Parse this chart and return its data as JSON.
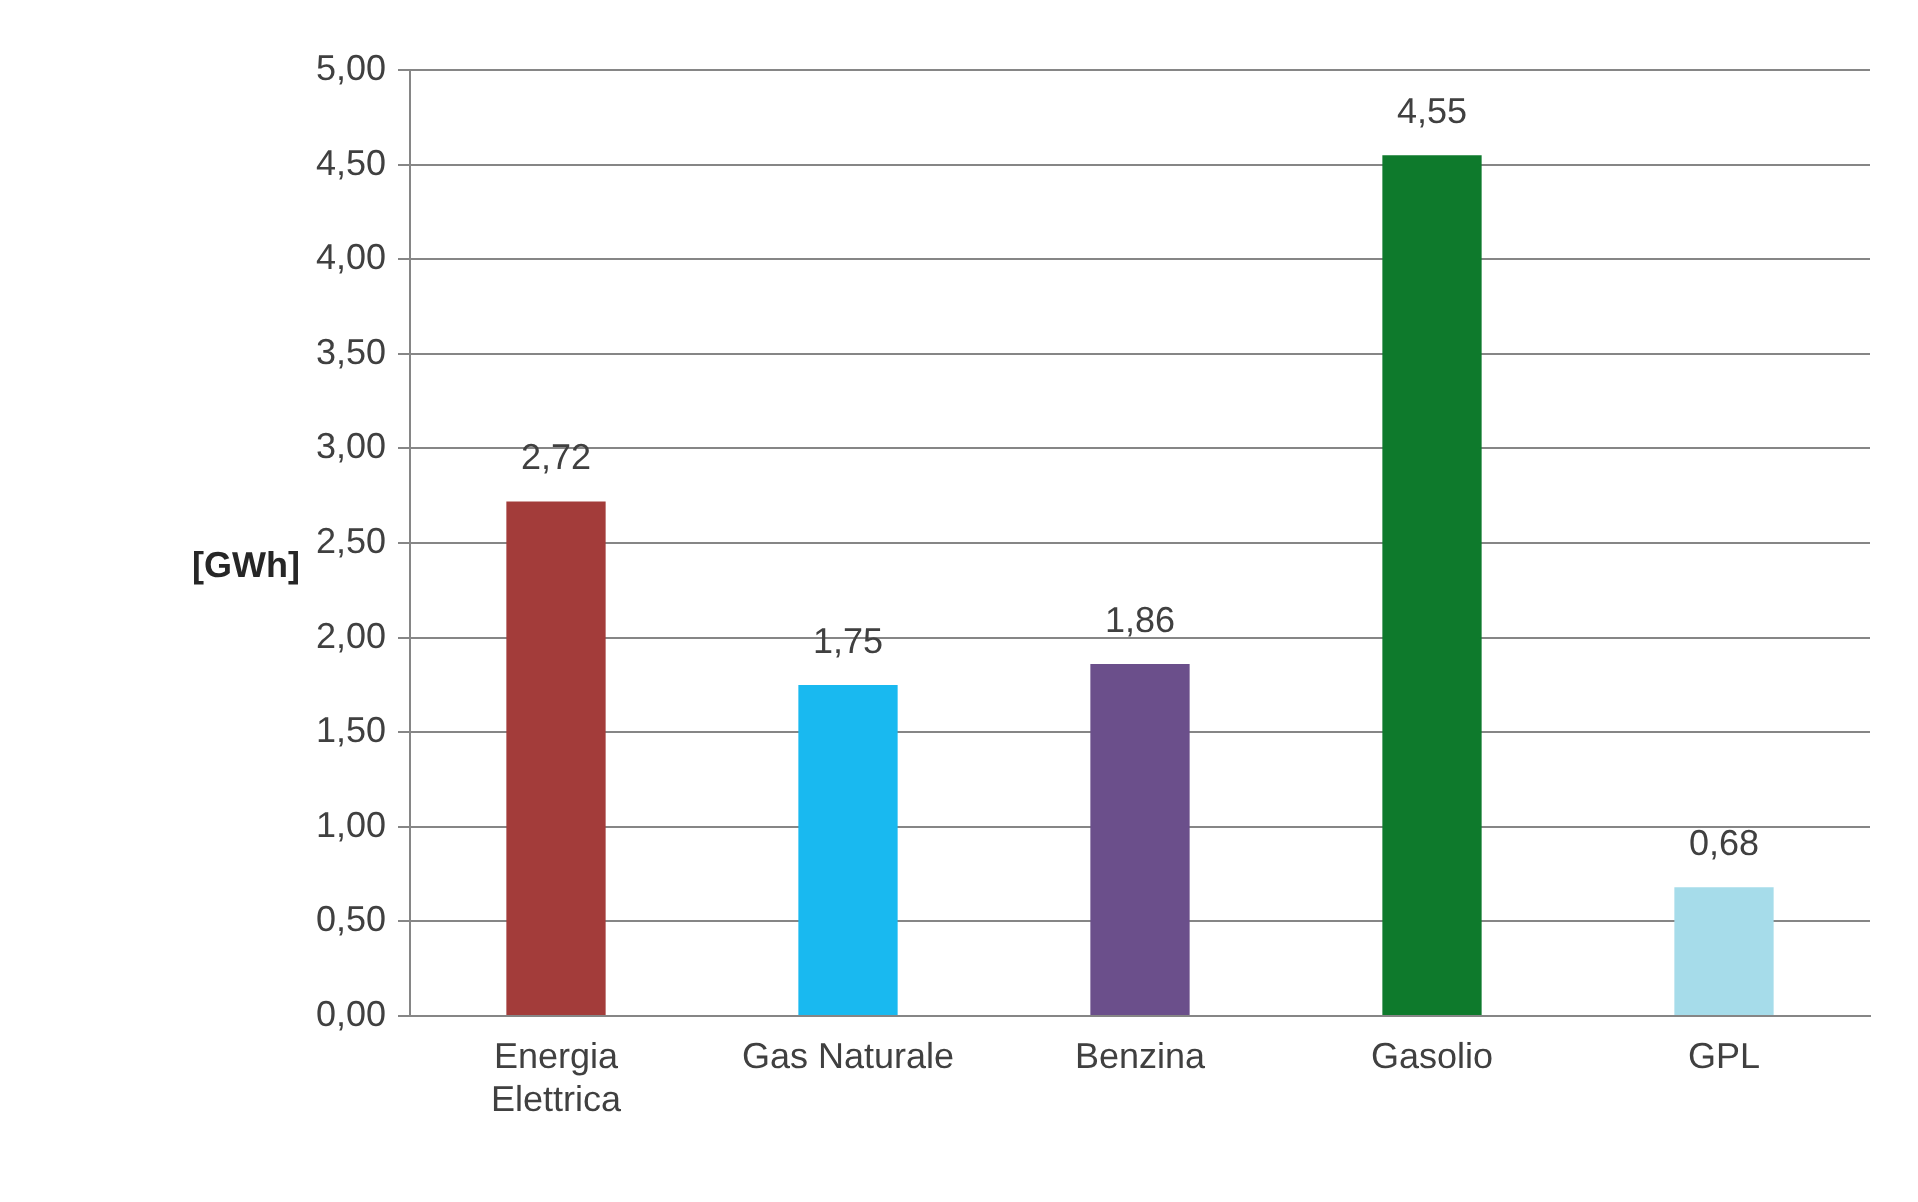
{
  "chart_data": {
    "type": "bar",
    "ylabel": "[GWh]",
    "categories": [
      "Energia Elettrica",
      "Gas Naturale",
      "Benzina",
      "Gasolio",
      "GPL"
    ],
    "values": [
      2.72,
      1.75,
      1.86,
      4.55,
      0.68
    ],
    "colors": [
      "#a33c3a",
      "#19b9f0",
      "#6b4f8b",
      "#0e7a2c",
      "#a6dcea"
    ],
    "ylim": [
      0,
      5
    ],
    "yticks": [
      {
        "value": 0,
        "label": "0,00"
      },
      {
        "value": 0.5,
        "label": "0,50"
      },
      {
        "value": 1,
        "label": "1,00"
      },
      {
        "value": 1.5,
        "label": "1,50"
      },
      {
        "value": 2,
        "label": "2,00"
      },
      {
        "value": 2.5,
        "label": "2,50"
      },
      {
        "value": 3,
        "label": "3,00"
      },
      {
        "value": 3.5,
        "label": "3,50"
      },
      {
        "value": 4,
        "label": "4,00"
      },
      {
        "value": 4.5,
        "label": "4,50"
      },
      {
        "value": 5,
        "label": "5,00"
      }
    ],
    "value_labels": [
      "2,72",
      "1,75",
      "1,86",
      "4,55",
      "0,68"
    ],
    "grid": "y",
    "legend": false
  }
}
